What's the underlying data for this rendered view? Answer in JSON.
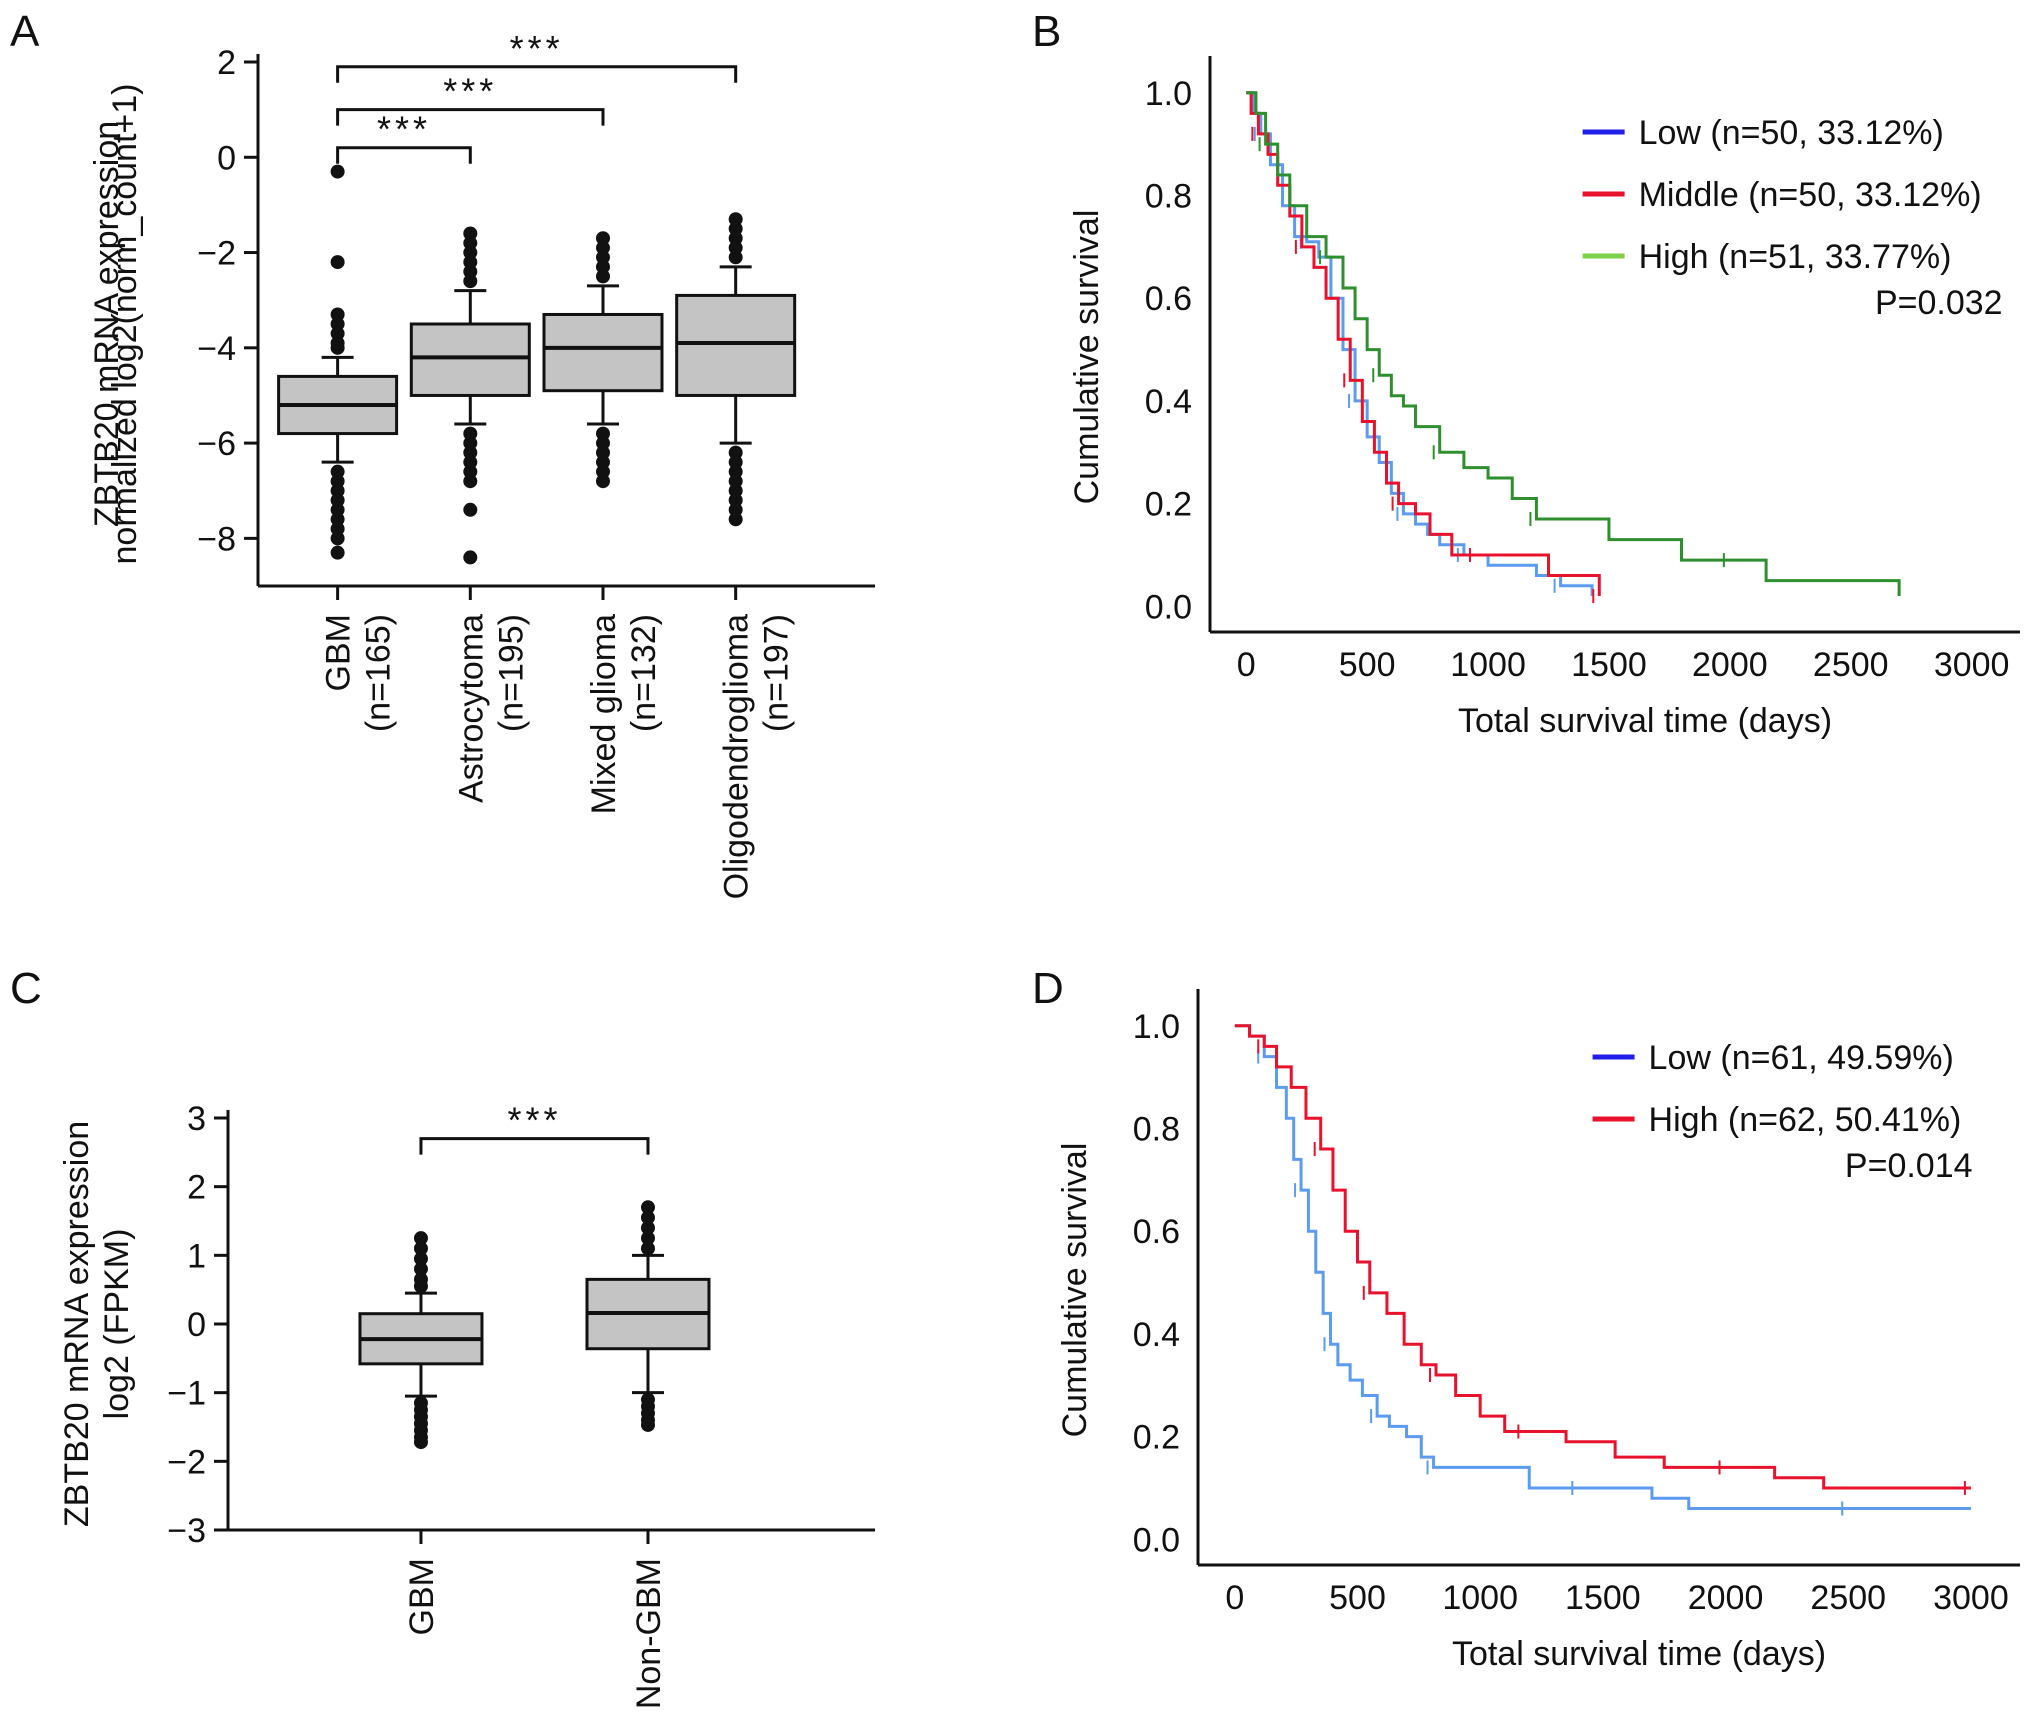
{
  "chart_data": [
    {
      "panel": "A",
      "type": "box",
      "ylabel_lines": [
        "ZBTB20 mRNA expression",
        "normalized log2(norm_count+1)"
      ],
      "ylim": [
        -9,
        2
      ],
      "yticks": [
        2,
        0,
        -2,
        -4,
        -6,
        -8
      ],
      "ytick_labels": [
        "2",
        "0",
        "−2",
        "−4",
        "−6",
        "−8"
      ],
      "categories": [
        {
          "name": "GBM",
          "n": "(n=165)"
        },
        {
          "name": "Astrocytoma",
          "n": "(n=195)"
        },
        {
          "name": "Mixed glioma",
          "n": "(n=132)"
        },
        {
          "name": "Oligodendroglioma",
          "n": "(n=197)"
        }
      ],
      "boxes": [
        {
          "q1": -5.8,
          "median": -5.2,
          "q3": -4.6,
          "wlo": -6.4,
          "whi": -4.2,
          "outliers": [
            -0.3,
            -2.2,
            -3.3,
            -3.5,
            -3.7,
            -3.9,
            -4.0,
            -6.6,
            -6.8,
            -7.0,
            -7.2,
            -7.4,
            -7.6,
            -7.8,
            -8.0,
            -8.3
          ]
        },
        {
          "q1": -5.0,
          "median": -4.2,
          "q3": -3.5,
          "wlo": -5.6,
          "whi": -2.8,
          "outliers": [
            -1.6,
            -1.8,
            -2.0,
            -2.2,
            -2.4,
            -2.6,
            -5.8,
            -6.0,
            -6.2,
            -6.4,
            -6.6,
            -6.8,
            -7.4,
            -8.4
          ]
        },
        {
          "q1": -4.9,
          "median": -4.0,
          "q3": -3.3,
          "wlo": -5.6,
          "whi": -2.7,
          "outliers": [
            -1.7,
            -1.9,
            -2.1,
            -2.3,
            -2.5,
            -5.8,
            -6.0,
            -6.2,
            -6.4,
            -6.6,
            -6.8
          ]
        },
        {
          "q1": -5.0,
          "median": -3.9,
          "q3": -2.9,
          "wlo": -6.0,
          "whi": -2.3,
          "outliers": [
            -1.3,
            -1.5,
            -1.7,
            -1.9,
            -2.1,
            -6.2,
            -6.4,
            -6.6,
            -6.8,
            -7.0,
            -7.2,
            -7.4,
            -7.6
          ]
        }
      ],
      "significance": [
        {
          "from": 0,
          "to": 1,
          "label": "***",
          "y": 0.2
        },
        {
          "from": 0,
          "to": 2,
          "label": "***",
          "y": 1.0
        },
        {
          "from": 0,
          "to": 3,
          "label": "***",
          "y": 1.9
        }
      ]
    },
    {
      "panel": "B",
      "type": "line",
      "xlabel": "Total survival time (days)",
      "ylabel": "Cumulative survival",
      "xlim": [
        -150,
        3200
      ],
      "ylim": [
        -0.05,
        1.06
      ],
      "xticks": [
        0,
        500,
        1000,
        1500,
        2000,
        2500,
        3000
      ],
      "yticks": [
        0.0,
        0.2,
        0.4,
        0.6,
        0.8,
        1.0
      ],
      "ytick_labels": [
        "0.0",
        "0.2",
        "0.4",
        "0.6",
        "0.8",
        "1.0"
      ],
      "legend": [
        {
          "label": "Low (n=50, 33.12%)",
          "color": "#1f1fe8"
        },
        {
          "label": "Middle (n=50, 33.12%)",
          "color": "#e8122d"
        },
        {
          "label": "High (n=51, 33.77%)",
          "color": "#7bd045"
        }
      ],
      "pvalue": "P=0.032",
      "series": [
        {
          "name": "Low",
          "color": "#5b9bf0",
          "x": [
            0,
            30,
            60,
            100,
            150,
            200,
            250,
            300,
            350,
            400,
            450,
            500,
            550,
            600,
            650,
            700,
            750,
            800,
            900,
            1000,
            1100,
            1200,
            1300,
            1400,
            1430
          ],
          "y": [
            1.0,
            0.96,
            0.92,
            0.86,
            0.78,
            0.72,
            0.71,
            0.68,
            0.6,
            0.5,
            0.4,
            0.33,
            0.28,
            0.22,
            0.18,
            0.16,
            0.14,
            0.12,
            0.1,
            0.08,
            0.08,
            0.06,
            0.04,
            0.04,
            0.02
          ]
        },
        {
          "name": "Middle",
          "color": "#e8122d",
          "x": [
            0,
            20,
            50,
            90,
            130,
            180,
            230,
            280,
            330,
            380,
            430,
            480,
            530,
            580,
            630,
            700,
            760,
            850,
            950,
            1100,
            1250,
            1350,
            1460
          ],
          "y": [
            1.0,
            0.96,
            0.92,
            0.88,
            0.82,
            0.76,
            0.7,
            0.66,
            0.6,
            0.52,
            0.44,
            0.36,
            0.3,
            0.24,
            0.2,
            0.18,
            0.14,
            0.1,
            0.1,
            0.1,
            0.06,
            0.06,
            0.02
          ]
        },
        {
          "name": "High",
          "color": "#2e8f2e",
          "x": [
            0,
            40,
            80,
            130,
            180,
            250,
            330,
            400,
            450,
            500,
            550,
            600,
            650,
            700,
            800,
            900,
            1000,
            1100,
            1200,
            1400,
            1500,
            1800,
            2000,
            2100,
            2150,
            2700
          ],
          "y": [
            1.0,
            0.96,
            0.9,
            0.84,
            0.78,
            0.72,
            0.68,
            0.62,
            0.56,
            0.5,
            0.45,
            0.41,
            0.39,
            0.35,
            0.3,
            0.27,
            0.25,
            0.21,
            0.17,
            0.17,
            0.13,
            0.09,
            0.09,
            0.09,
            0.05,
            0.02
          ]
        }
      ]
    },
    {
      "panel": "C",
      "type": "box",
      "ylabel_lines": [
        "ZBTB20 mRNA expression",
        "log2 (FPKM)"
      ],
      "ylim": [
        -3,
        3
      ],
      "yticks": [
        3,
        2,
        1,
        0,
        -1,
        -2,
        -3
      ],
      "ytick_labels": [
        "3",
        "2",
        "1",
        "0",
        "−1",
        "−2",
        "−3"
      ],
      "categories": [
        {
          "name": "GBM",
          "n": ""
        },
        {
          "name": "Non-GBM",
          "n": ""
        }
      ],
      "boxes": [
        {
          "q1": -0.58,
          "median": -0.22,
          "q3": 0.15,
          "wlo": -1.05,
          "whi": 0.45,
          "outliers": [
            1.25,
            1.1,
            0.95,
            0.8,
            0.65,
            0.55,
            -1.15,
            -1.25,
            -1.35,
            -1.45,
            -1.55,
            -1.65,
            -1.72
          ]
        },
        {
          "q1": -0.36,
          "median": 0.16,
          "q3": 0.65,
          "wlo": -1.0,
          "whi": 1.0,
          "outliers": [
            1.7,
            1.55,
            1.4,
            1.25,
            1.1,
            -1.1,
            -1.2,
            -1.3,
            -1.4,
            -1.47
          ]
        }
      ],
      "significance": [
        {
          "from": 0,
          "to": 1,
          "label": "***",
          "y": 2.7
        }
      ]
    },
    {
      "panel": "D",
      "type": "line",
      "xlabel": "Total survival time (days)",
      "ylabel": "Cumulative survival",
      "xlim": [
        -150,
        3200
      ],
      "ylim": [
        -0.05,
        1.06
      ],
      "xticks": [
        0,
        500,
        1000,
        1500,
        2000,
        2500,
        3000
      ],
      "yticks": [
        0.0,
        0.2,
        0.4,
        0.6,
        0.8,
        1.0
      ],
      "ytick_labels": [
        "0.0",
        "0.2",
        "0.4",
        "0.6",
        "0.8",
        "1.0"
      ],
      "legend": [
        {
          "label": "Low (n=61, 49.59%)",
          "color": "#1f1fe8"
        },
        {
          "label": "High (n=62, 50.41%)",
          "color": "#e8122d"
        }
      ],
      "pvalue": "P=0.014",
      "series": [
        {
          "name": "Low",
          "color": "#5b9bf0",
          "x": [
            0,
            60,
            120,
            170,
            210,
            240,
            270,
            300,
            330,
            360,
            390,
            420,
            470,
            520,
            580,
            630,
            700,
            760,
            810,
            900,
            1050,
            1200,
            1400,
            1700,
            1850,
            2100,
            2500,
            3000
          ],
          "y": [
            1.0,
            0.98,
            0.94,
            0.88,
            0.82,
            0.74,
            0.68,
            0.6,
            0.52,
            0.44,
            0.38,
            0.34,
            0.31,
            0.28,
            0.24,
            0.22,
            0.2,
            0.16,
            0.14,
            0.14,
            0.14,
            0.1,
            0.1,
            0.08,
            0.06,
            0.06,
            0.06,
            0.06
          ]
        },
        {
          "name": "High",
          "color": "#e8122d",
          "x": [
            0,
            60,
            120,
            170,
            230,
            290,
            350,
            400,
            450,
            500,
            550,
            620,
            690,
            760,
            820,
            900,
            1000,
            1100,
            1180,
            1350,
            1550,
            1750,
            2000,
            2200,
            2400,
            2700,
            3000
          ],
          "y": [
            1.0,
            0.98,
            0.96,
            0.92,
            0.88,
            0.82,
            0.76,
            0.68,
            0.6,
            0.54,
            0.48,
            0.44,
            0.38,
            0.34,
            0.32,
            0.28,
            0.24,
            0.21,
            0.21,
            0.19,
            0.16,
            0.14,
            0.14,
            0.12,
            0.1,
            0.1,
            0.1
          ]
        }
      ]
    }
  ]
}
